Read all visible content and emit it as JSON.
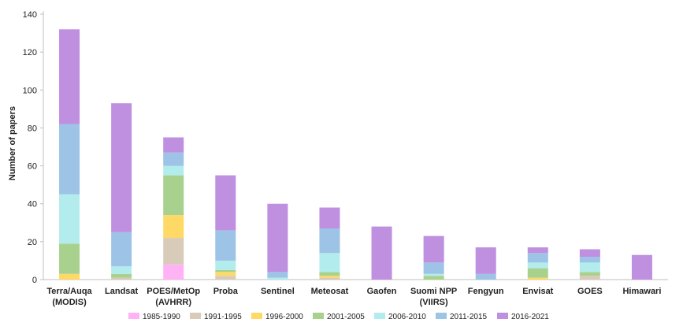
{
  "chart_data": {
    "type": "bar",
    "stacked": true,
    "ylabel": "Number of papers",
    "ylim": [
      0,
      140
    ],
    "yticks": [
      0,
      20,
      40,
      60,
      80,
      100,
      120,
      140
    ],
    "grid": false,
    "legend_position": "bottom",
    "categories": [
      [
        "Terra/Auqa",
        "(MODIS)"
      ],
      [
        "Landsat"
      ],
      [
        "POES/MetOp",
        "(AVHRR)"
      ],
      [
        "Proba"
      ],
      [
        "Sentinel"
      ],
      [
        "Meteosat"
      ],
      [
        "Gaofen"
      ],
      [
        "Suomi NPP",
        "(VIIRS)"
      ],
      [
        "Fengyun"
      ],
      [
        "Envisat"
      ],
      [
        "GOES"
      ],
      [
        "Himawari"
      ]
    ],
    "series": [
      {
        "name": "1985-1990",
        "color": "#ffb3f5",
        "values": [
          0,
          0,
          8,
          0,
          0,
          0,
          0,
          0,
          0,
          0,
          0,
          0
        ]
      },
      {
        "name": "1991-1995",
        "color": "#d9cbb9",
        "values": [
          0,
          1,
          14,
          2,
          0,
          1,
          0,
          0,
          0,
          0,
          2,
          0
        ]
      },
      {
        "name": "1996-2000",
        "color": "#ffd966",
        "values": [
          3,
          0,
          12,
          2,
          0,
          1,
          0,
          0,
          0,
          1,
          0,
          0
        ]
      },
      {
        "name": "2001-2005",
        "color": "#a9d18e",
        "values": [
          16,
          2,
          21,
          1,
          0,
          2,
          0,
          2,
          0,
          5,
          2,
          0
        ]
      },
      {
        "name": "2006-2010",
        "color": "#b3ecec",
        "values": [
          26,
          4,
          5,
          5,
          1,
          10,
          0,
          1,
          0,
          3,
          5,
          0
        ]
      },
      {
        "name": "2011-2015",
        "color": "#9dc3e6",
        "values": [
          37,
          18,
          7,
          16,
          3,
          13,
          0,
          6,
          3,
          5,
          3,
          0
        ]
      },
      {
        "name": "2016-2021",
        "color": "#bf8fe0",
        "values": [
          50,
          68,
          8,
          29,
          36,
          11,
          28,
          14,
          14,
          3,
          4,
          13
        ]
      }
    ]
  }
}
